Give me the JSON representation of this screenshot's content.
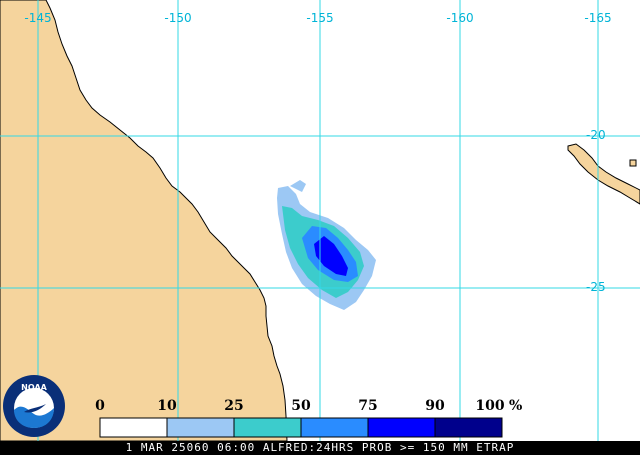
{
  "map": {
    "longitude_labels": [
      "-145",
      "-150",
      "-155",
      "-160",
      "-165"
    ],
    "latitude_labels": [
      "-20",
      "-25"
    ],
    "colors": {
      "land": "#f5d49d",
      "ocean": "#ffffff",
      "grid": "#33d9e6",
      "grid_label": "#00b4d6",
      "coast": "#000000"
    }
  },
  "legend": {
    "labels": [
      "0",
      "10",
      "25",
      "50",
      "75",
      "90",
      "100"
    ],
    "unit": "%",
    "colors": [
      "#ffffff",
      "#9cc8f4",
      "#3ccccc",
      "#2a8cff",
      "#0000ff",
      "#00008c"
    ]
  },
  "probability_field": {
    "levels": [
      "10",
      "25",
      "50",
      "75"
    ],
    "colors": [
      "#9cc8f4",
      "#3ccccc",
      "#2a8cff",
      "#0000ff"
    ]
  },
  "logo": {
    "text": "NOAA",
    "colors": {
      "outer": "#0a2f78",
      "inner": "#ffffff",
      "wave": "#1c78d2"
    }
  },
  "caption": {
    "text": "1 MAR 25060 06:00 ALFRED:24HRS PROB >= 150 MM ETRAP"
  }
}
